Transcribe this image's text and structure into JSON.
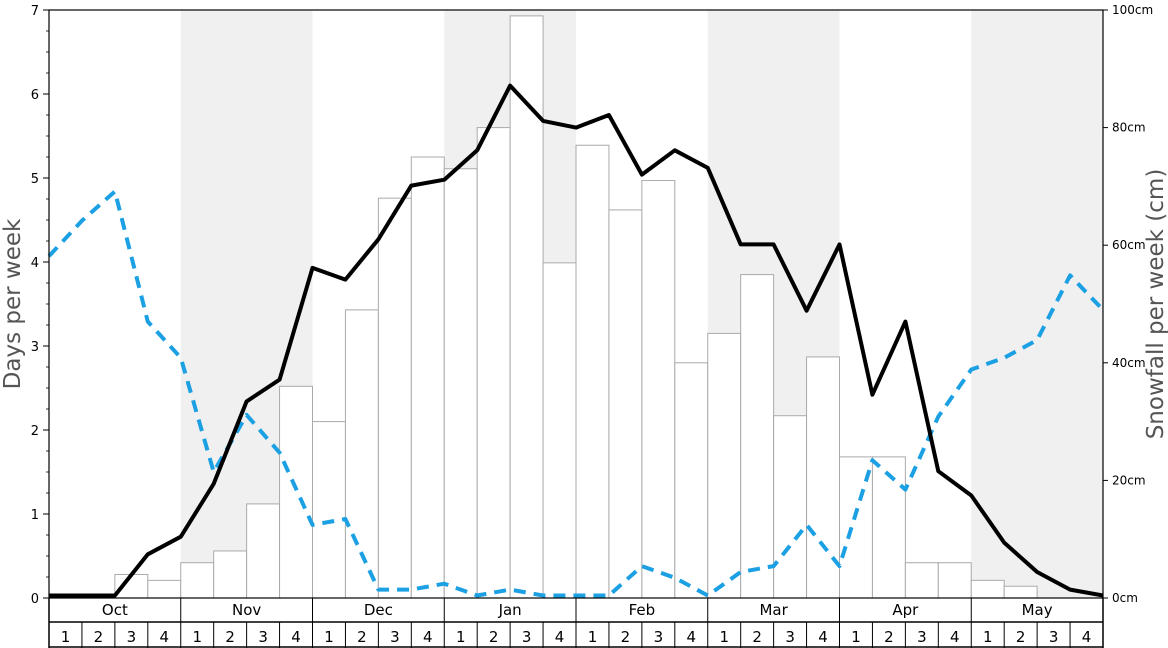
{
  "chart_data": {
    "type": "bar",
    "ylabel": "Days per week",
    "y2label": "Snowfall per week (cm)",
    "ylim": [
      0,
      7
    ],
    "y2lim": [
      0,
      100
    ],
    "yticks": [
      "0",
      "1",
      "2",
      "3",
      "4",
      "5",
      "6",
      "7"
    ],
    "y2ticks": [
      "0cm",
      "20cm",
      "40cm",
      "60cm",
      "80cm",
      "100cm"
    ],
    "months": [
      "Oct",
      "Nov",
      "Dec",
      "Jan",
      "Feb",
      "Mar",
      "Apr",
      "May"
    ],
    "weeks": [
      "1",
      "2",
      "3",
      "4"
    ],
    "shaded_months": [
      "Nov",
      "Jan",
      "Mar",
      "May"
    ],
    "grid": false,
    "colors": {
      "bar_fill": "#ffffff",
      "bar_stroke": "#aaaaaa",
      "solid_line": "#000000",
      "dashed_line": "#1ca0e4",
      "shade": "#f0f0f0"
    },
    "bars_snowfall_cm": [
      0,
      0,
      4,
      3,
      6,
      8,
      16,
      36,
      30,
      49,
      68,
      75,
      73,
      80,
      99,
      57,
      77,
      66,
      71,
      40,
      45,
      55,
      31,
      41,
      24,
      24,
      6,
      6,
      3,
      2,
      0,
      0
    ],
    "solid_line_days": [
      0.03,
      0.03,
      0.03,
      0.52,
      0.73,
      1.36,
      2.34,
      2.6,
      3.93,
      3.79,
      4.27,
      4.91,
      4.98,
      5.33,
      6.1,
      5.68,
      5.6,
      5.75,
      5.04,
      5.33,
      5.12,
      4.21,
      4.21,
      3.42,
      4.21,
      2.42,
      3.29,
      1.51,
      1.22,
      0.66,
      0.31,
      0.1,
      0.03
    ],
    "dashed_line_days": [
      4.07,
      4.49,
      4.84,
      3.29,
      2.86,
      1.5,
      2.18,
      1.73,
      0.87,
      0.94,
      0.1,
      0.1,
      0.17,
      0.03,
      0.1,
      0.03,
      0.03,
      0.03,
      0.38,
      0.24,
      0.03,
      0.31,
      0.38,
      0.87,
      0.38,
      1.64,
      1.29,
      2.16,
      2.72,
      2.86,
      3.07,
      3.84,
      3.43
    ]
  }
}
